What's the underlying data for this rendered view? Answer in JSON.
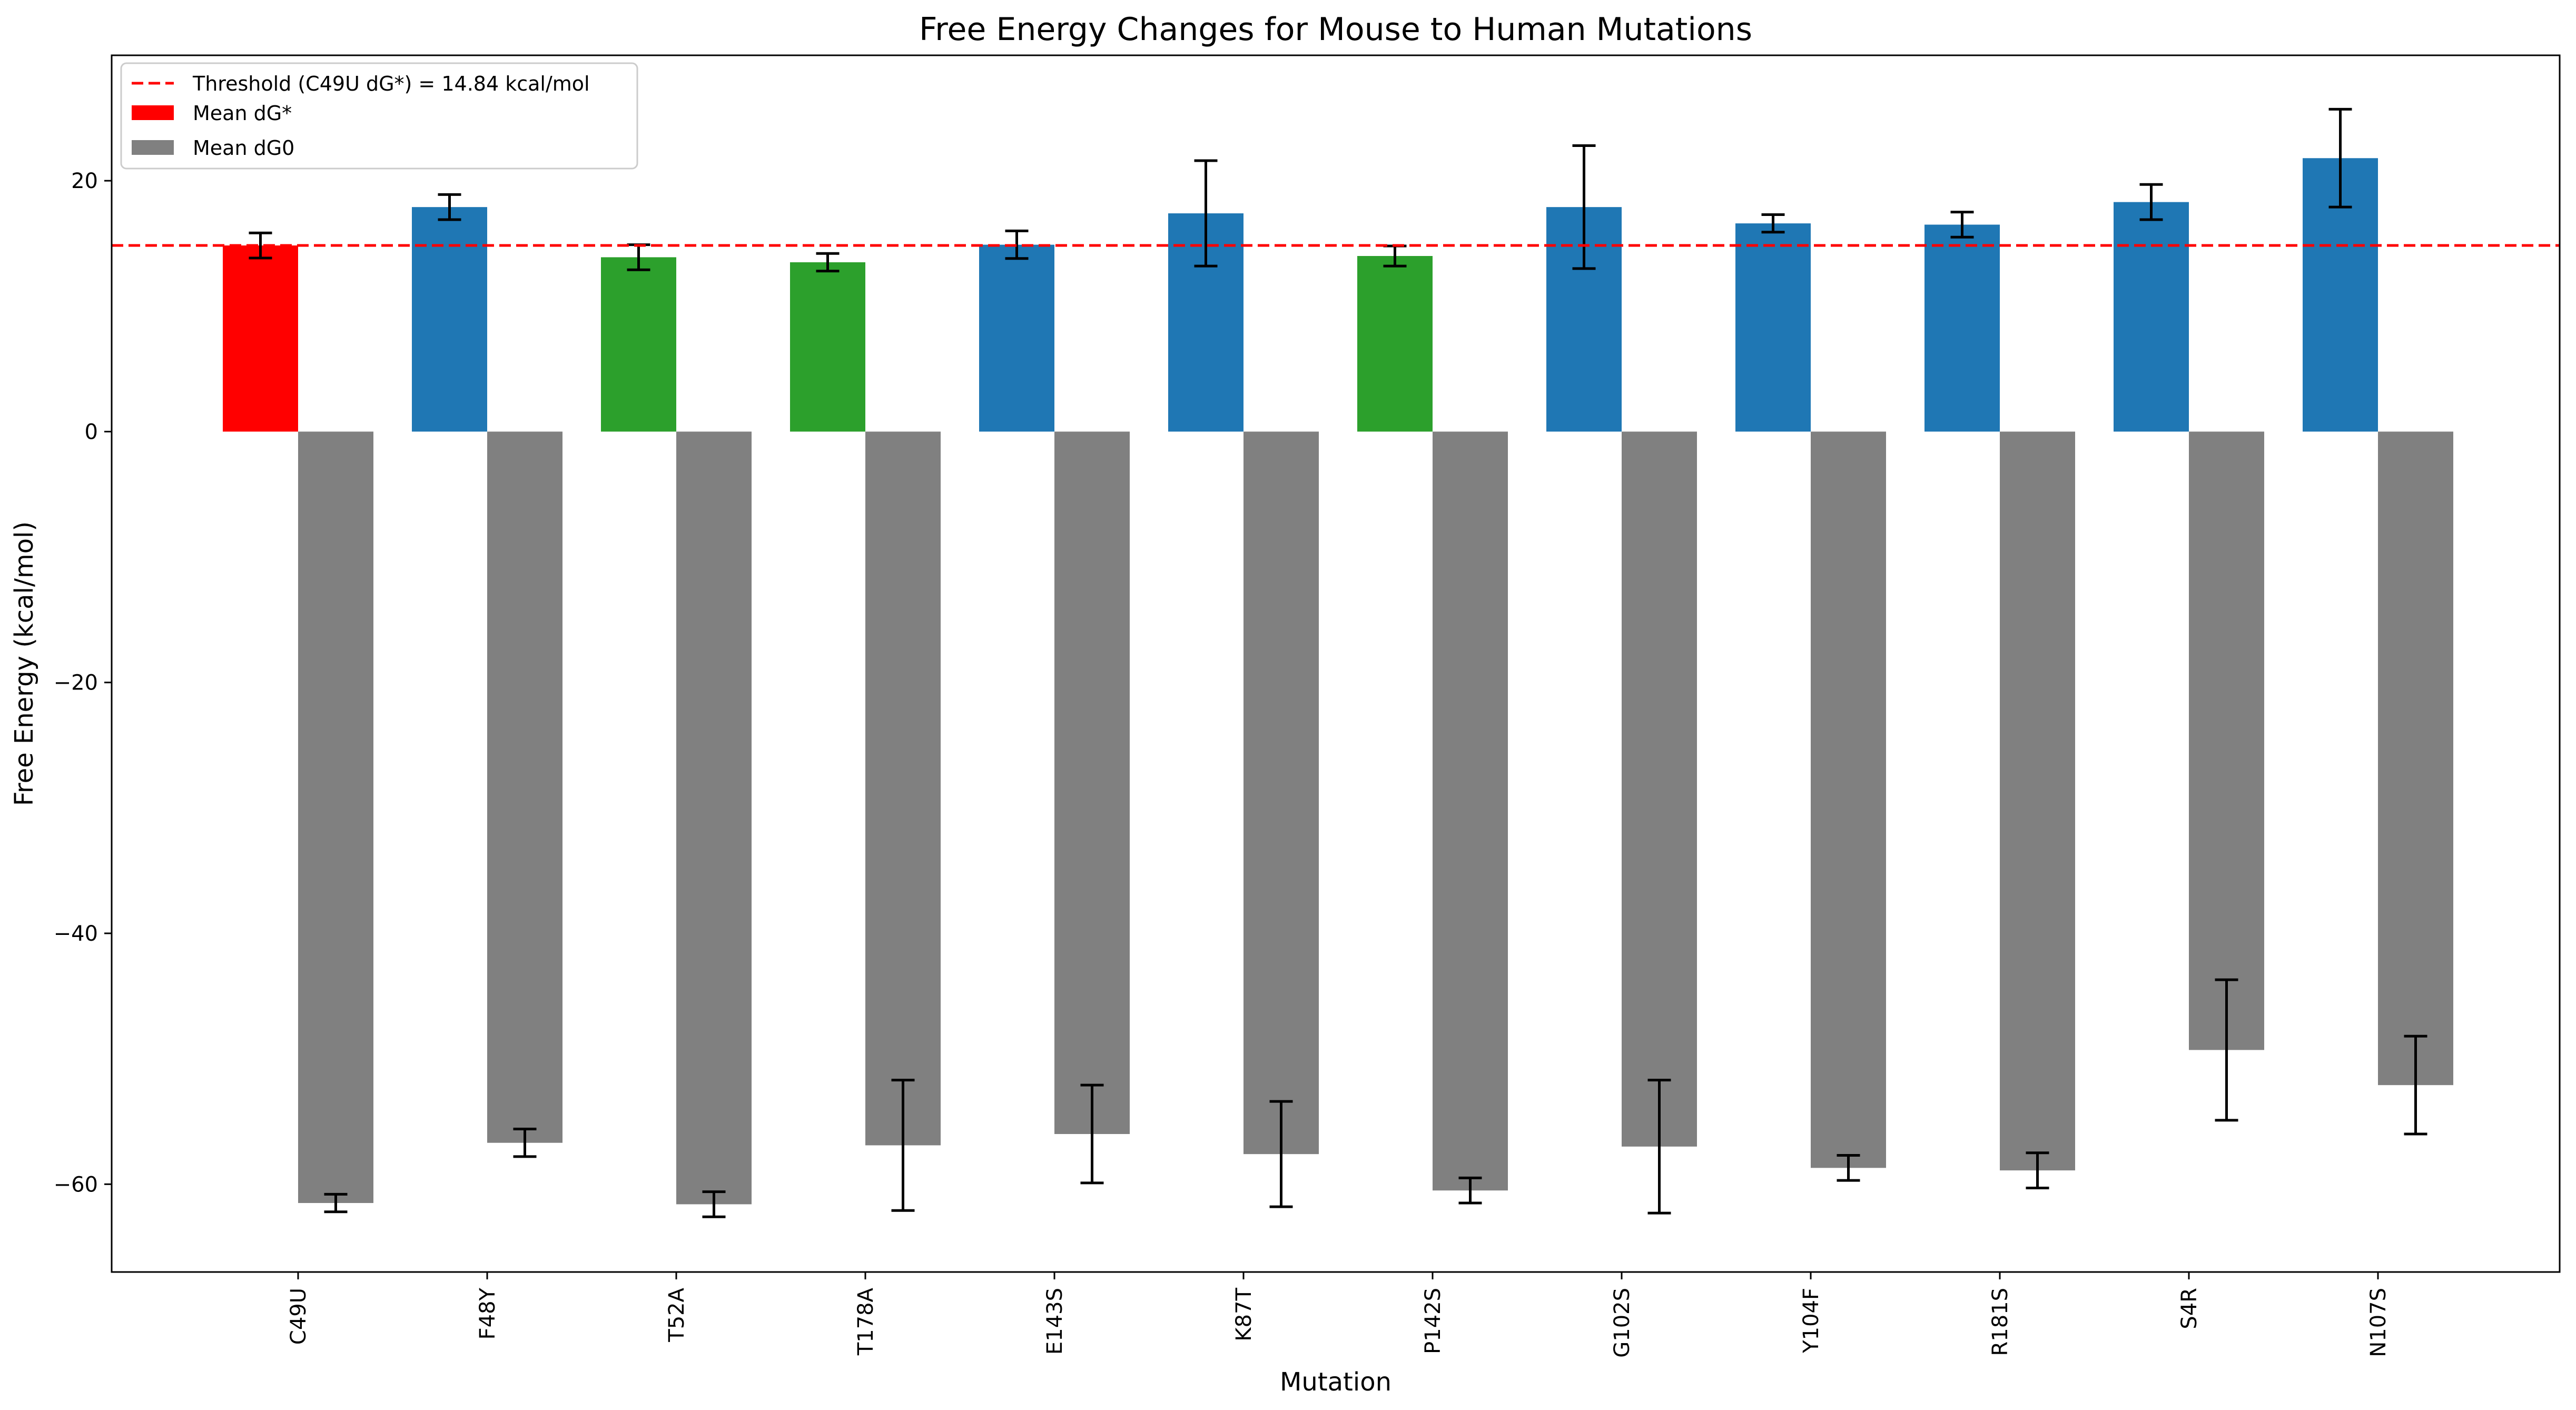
{
  "chart_data": {
    "type": "bar",
    "title": "Free Energy Changes for Mouse to Human Mutations",
    "xlabel": "Mutation",
    "ylabel": "Free Energy (kcal/mol)",
    "ylim": [
      -67,
      30
    ],
    "yticks": [
      -60,
      -40,
      -20,
      0,
      20
    ],
    "ytick_labels": [
      "−60",
      "−40",
      "−20",
      "0",
      "20"
    ],
    "grid": false,
    "legend_position": "upper-left",
    "categories": [
      "C49U",
      "F48Y",
      "T52A",
      "T178A",
      "E143S",
      "K87T",
      "P142S",
      "G102S",
      "Y104F",
      "R181S",
      "S4R",
      "N107S"
    ],
    "series": [
      {
        "name": "Mean dG*",
        "legend_color": "#ff0000",
        "values": [
          14.84,
          17.9,
          13.9,
          13.5,
          14.9,
          17.4,
          14.0,
          17.9,
          16.6,
          16.5,
          18.3,
          21.8
        ],
        "errors": [
          1.0,
          1.0,
          1.0,
          0.7,
          1.1,
          4.2,
          0.8,
          4.9,
          0.7,
          1.0,
          1.4,
          3.9
        ],
        "bar_colors": [
          "#ff0000",
          "#1f77b4",
          "#2ca02c",
          "#2ca02c",
          "#1f77b4",
          "#1f77b4",
          "#2ca02c",
          "#1f77b4",
          "#1f77b4",
          "#1f77b4",
          "#1f77b4",
          "#1f77b4"
        ]
      },
      {
        "name": "Mean dG0",
        "legend_color": "#808080",
        "values": [
          -61.5,
          -56.7,
          -61.6,
          -56.9,
          -56.0,
          -57.6,
          -60.5,
          -57.0,
          -58.7,
          -58.9,
          -49.3,
          -52.1
        ],
        "errors": [
          0.7,
          1.1,
          1.0,
          5.2,
          3.9,
          4.2,
          1.0,
          5.3,
          1.0,
          1.4,
          5.6,
          3.9
        ],
        "bar_colors": [
          "#808080",
          "#808080",
          "#808080",
          "#808080",
          "#808080",
          "#808080",
          "#808080",
          "#808080",
          "#808080",
          "#808080",
          "#808080",
          "#808080"
        ]
      }
    ],
    "threshold": {
      "label": "Threshold (C49U dG*) = 14.84 kcal/mol",
      "value": 14.84,
      "color": "#ff0000",
      "style": "dashed"
    }
  }
}
